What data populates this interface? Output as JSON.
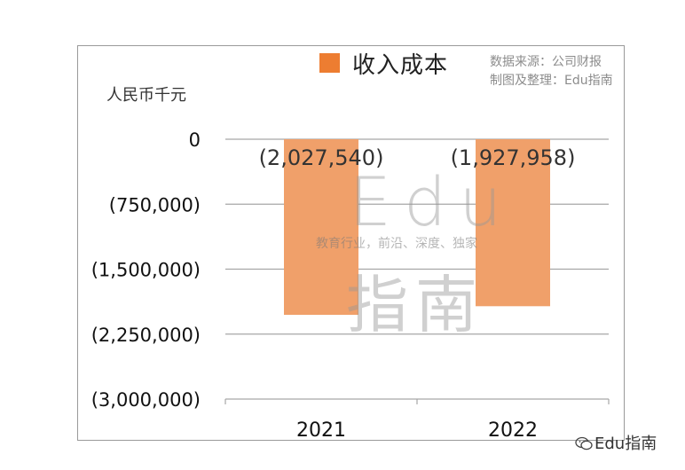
{
  "legend": {
    "label": "收入成本",
    "color": "#ed7d31"
  },
  "source": {
    "line1": "数据来源：公司财报",
    "line2": "制图及整理：Edu指南"
  },
  "unit": "人民币千元",
  "watermark": {
    "latin": "Edu",
    "tagline": "教育行业，前沿、深度、独家",
    "cjk": "指南"
  },
  "footer": {
    "text": "Edu指南",
    "icon": "wechat-icon"
  },
  "chart_data": {
    "type": "bar",
    "categories": [
      "2021",
      "2022"
    ],
    "series": [
      {
        "name": "收入成本",
        "values": [
          -2027540,
          -1927958
        ],
        "color": "#f0a06a"
      }
    ],
    "data_labels": [
      "(2,027,540)",
      "(1,927,958)"
    ],
    "ylim": [
      -3000000,
      0
    ],
    "yticks": [
      0,
      -750000,
      -1500000,
      -2250000,
      -3000000
    ],
    "ytick_labels": [
      "0",
      "(750,000)",
      "(1,500,000)",
      "(2,250,000)",
      "(3,000,000)"
    ],
    "ylabel": "人民币千元",
    "grid": true,
    "legend_position": "top"
  }
}
